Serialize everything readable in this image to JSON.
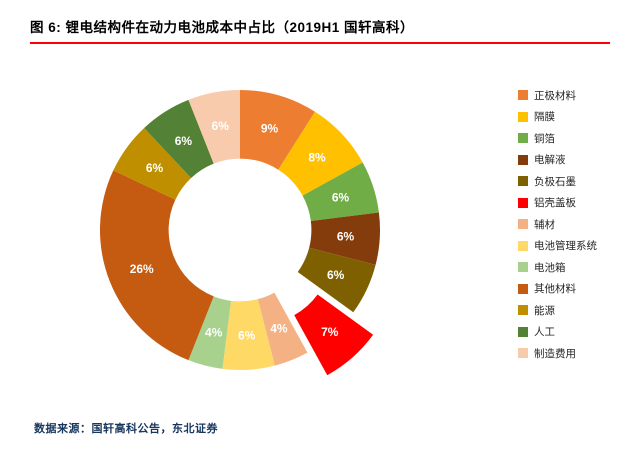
{
  "header": {
    "title": "图  6:  锂电结构件在动力电池成本中占比（2019H1 国轩高科）"
  },
  "chart_data": {
    "type": "pie",
    "subtype": "donut",
    "title": "锂电结构件在动力电池成本中占比（2019H1 国轩高科）",
    "categories": [
      "正极材料",
      "隔膜",
      "铜箔",
      "电解液",
      "负极石墨",
      "铝壳盖板",
      "辅材",
      "电池管理系统",
      "电池箱",
      "其他材料",
      "能源",
      "人工",
      "制造费用"
    ],
    "values": [
      9,
      8,
      6,
      6,
      6,
      7,
      4,
      6,
      4,
      26,
      6,
      6,
      6
    ],
    "labels": [
      "9%",
      "8%",
      "6%",
      "6%",
      "6%",
      "7%",
      "4%",
      "6%",
      "4%",
      "26%",
      "6%",
      "6%",
      "6%"
    ],
    "colors": [
      "#ED7D31",
      "#FFC000",
      "#70AD47",
      "#843C0C",
      "#7F6000",
      "#FF0000",
      "#F4B183",
      "#FFD966",
      "#A9D18E",
      "#C55A11",
      "#BF8F00",
      "#538135",
      "#F8CBAD"
    ],
    "unit": "%",
    "start_angle_deg": 0,
    "direction": "clockwise",
    "inner_radius_ratio": 0.51,
    "exploded_index": 5,
    "legend_position": "right",
    "data_labels": "inside-white-bold"
  },
  "footer": {
    "source": "数据来源：国轩高科公告，东北证券"
  },
  "styles": {
    "divider_color": "#FF0000",
    "source_color": "#17375E",
    "title_color": "#000000",
    "legend_text_color": "#262626"
  }
}
